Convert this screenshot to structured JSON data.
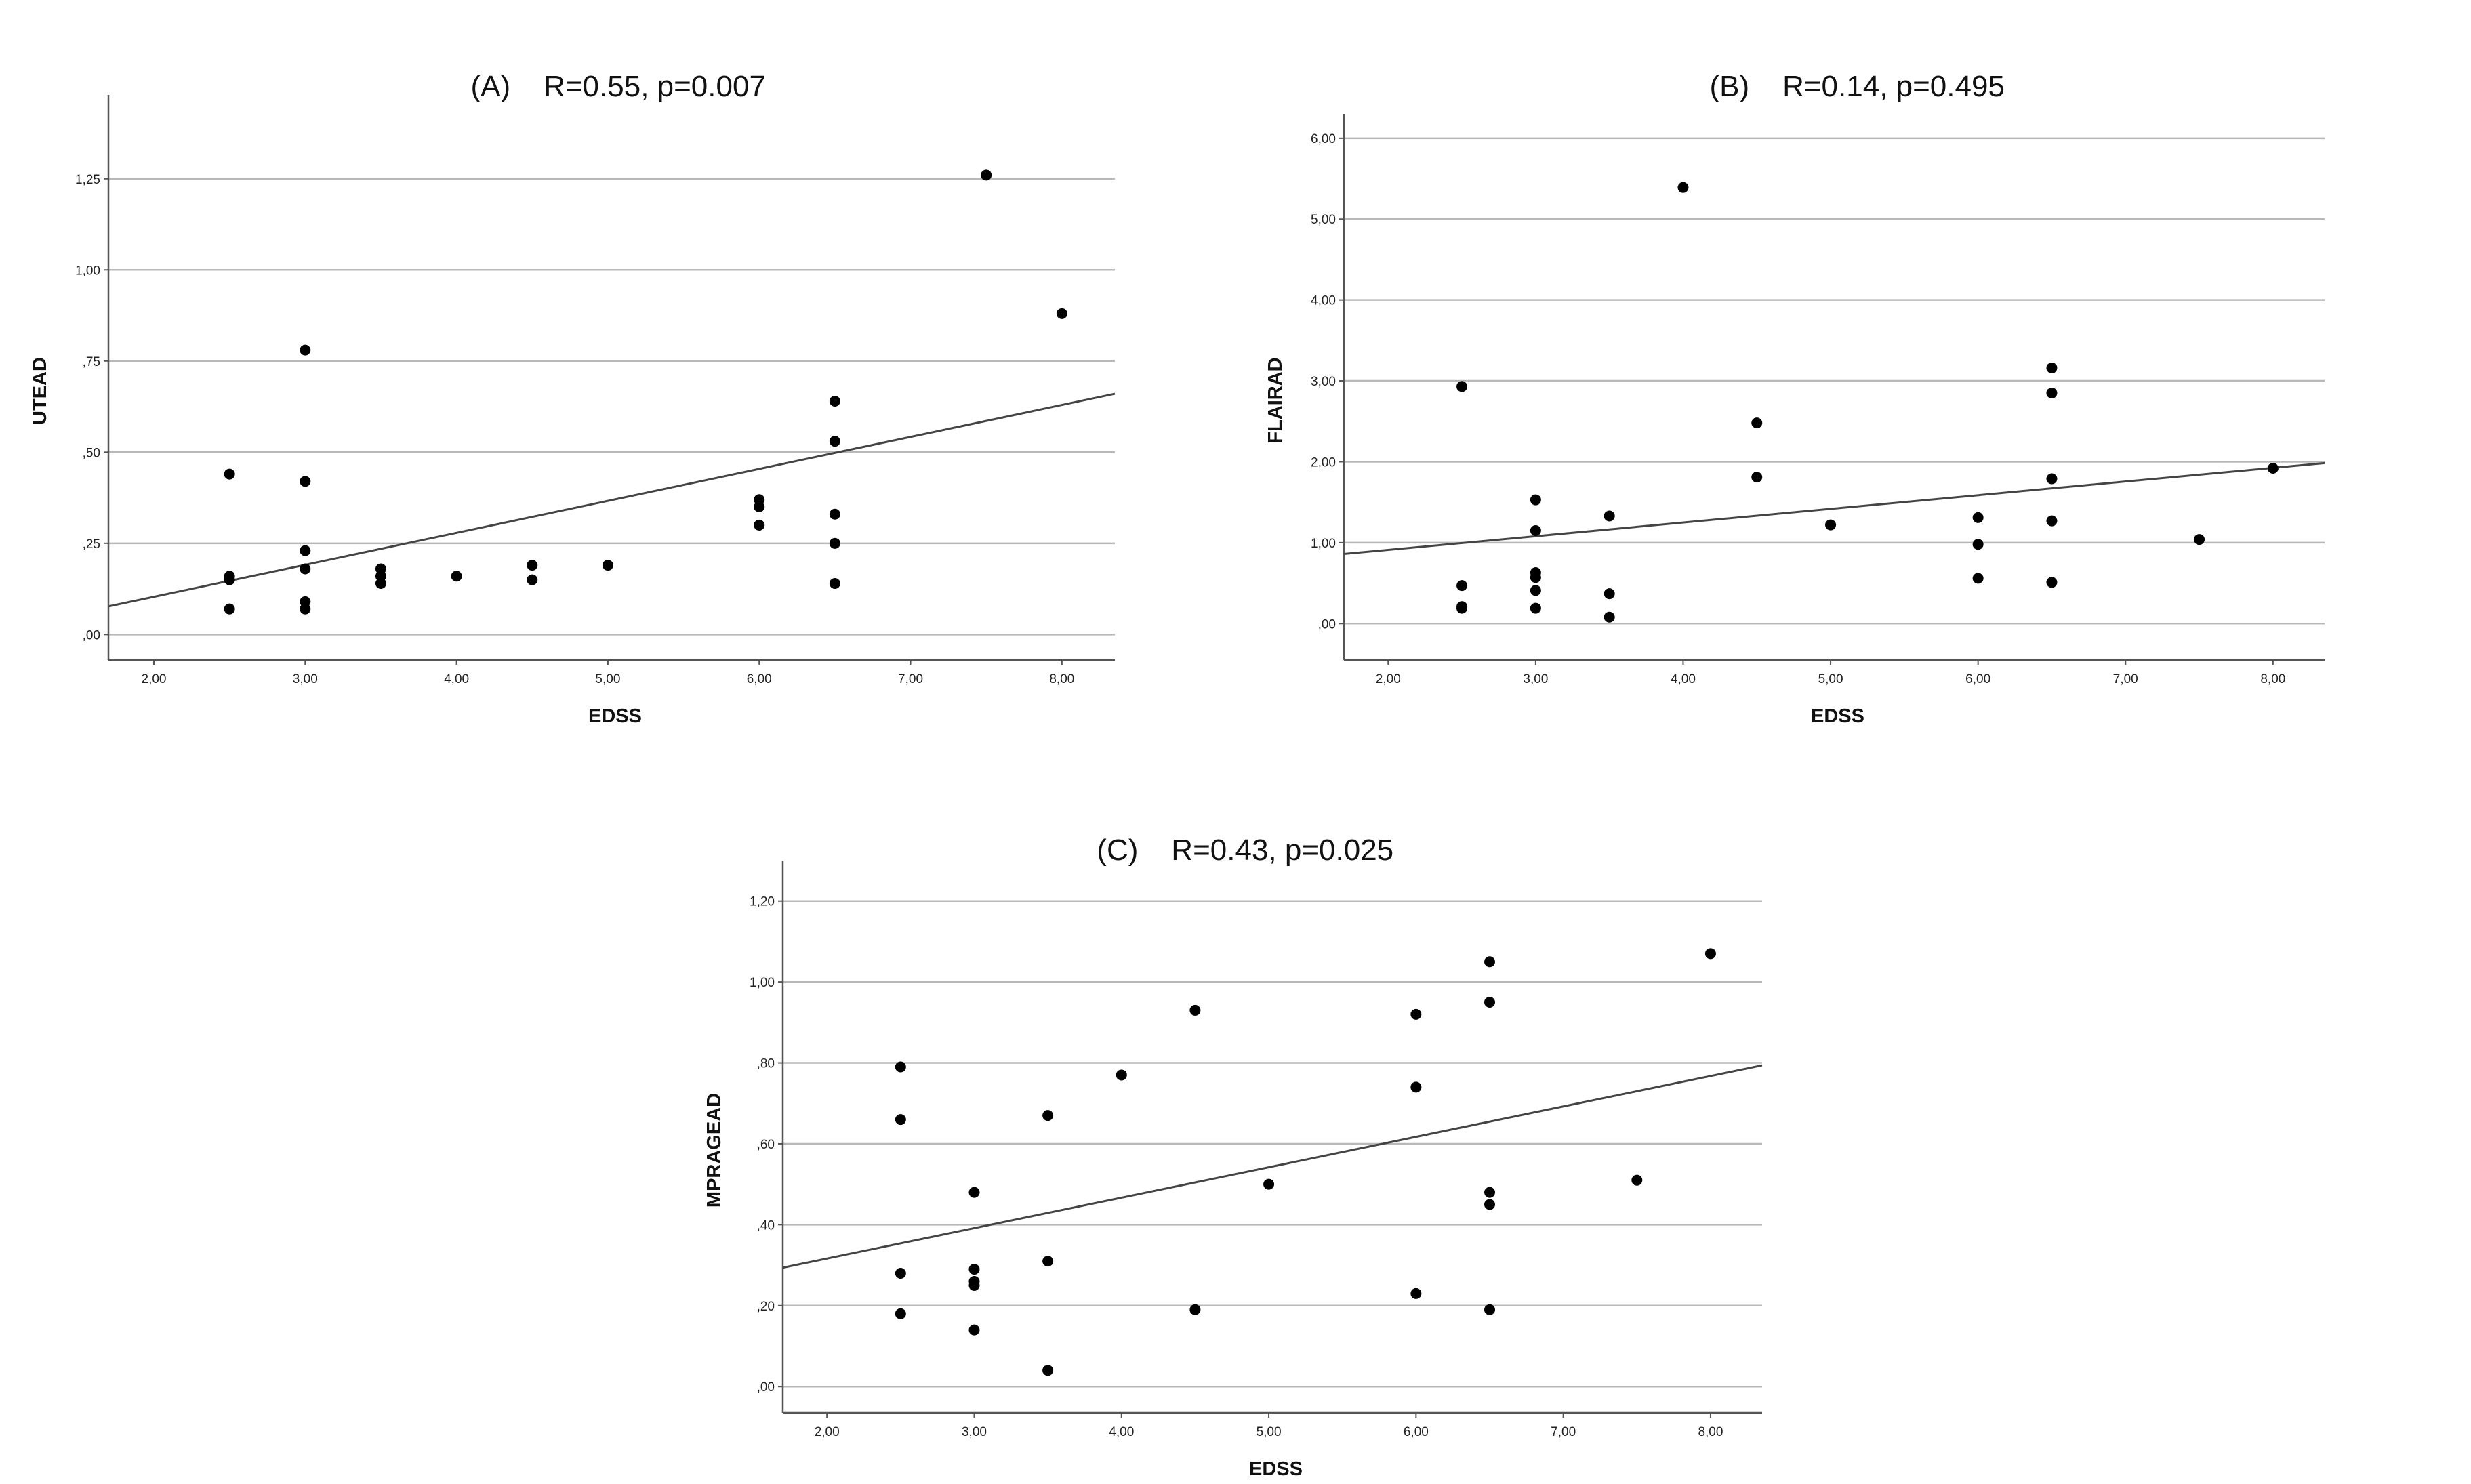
{
  "colors": {
    "point": "#000000",
    "gridline": "#b8b8b8",
    "axis": "#555555",
    "fit_line": "#444444",
    "background": "#ffffff"
  },
  "chart_data": [
    {
      "type": "scatter",
      "panel": "(A)",
      "title": "R=0.55, p=0.007",
      "xlabel": "EDSS",
      "ylabel": "UTEAD",
      "xlim": [
        1.7,
        8.35
      ],
      "ylim": [
        -0.07,
        1.48
      ],
      "xticks": [
        2,
        3,
        4,
        5,
        6,
        7,
        8
      ],
      "xtick_labels": [
        "2,00",
        "3,00",
        "4,00",
        "5,00",
        "6,00",
        "7,00",
        "8,00"
      ],
      "yticks": [
        0,
        0.25,
        0.5,
        0.75,
        1.0,
        1.25
      ],
      "ytick_labels": [
        ",00",
        ",25",
        ",50",
        ",75",
        "1,00",
        "1,25"
      ],
      "grid": "horizontal",
      "fit_line": {
        "slope": 0.0877,
        "intercept": -0.072
      },
      "points": [
        [
          2.5,
          0.44
        ],
        [
          2.5,
          0.16
        ],
        [
          2.5,
          0.15
        ],
        [
          2.5,
          0.07
        ],
        [
          3.0,
          0.78
        ],
        [
          3.0,
          0.42
        ],
        [
          3.0,
          0.23
        ],
        [
          3.0,
          0.18
        ],
        [
          3.0,
          0.09
        ],
        [
          3.0,
          0.07
        ],
        [
          3.5,
          0.18
        ],
        [
          3.5,
          0.16
        ],
        [
          3.5,
          0.14
        ],
        [
          4.0,
          0.16
        ],
        [
          4.5,
          0.19
        ],
        [
          4.5,
          0.15
        ],
        [
          5.0,
          0.19
        ],
        [
          6.0,
          0.37
        ],
        [
          6.0,
          0.35
        ],
        [
          6.0,
          0.3
        ],
        [
          6.5,
          0.64
        ],
        [
          6.5,
          0.53
        ],
        [
          6.5,
          0.33
        ],
        [
          6.5,
          0.25
        ],
        [
          6.5,
          0.14
        ],
        [
          7.5,
          1.26
        ],
        [
          8.0,
          0.88
        ]
      ]
    },
    {
      "type": "scatter",
      "panel": "(B)",
      "title": "R=0.14, p=0.495",
      "xlabel": "EDSS",
      "ylabel": "FLAIRAD",
      "xlim": [
        1.7,
        8.35
      ],
      "ylim": [
        -0.45,
        6.3
      ],
      "xticks": [
        2,
        3,
        4,
        5,
        6,
        7,
        8
      ],
      "xtick_labels": [
        "2,00",
        "3,00",
        "4,00",
        "5,00",
        "6,00",
        "7,00",
        "8,00"
      ],
      "yticks": [
        0,
        1,
        2,
        3,
        4,
        5,
        6
      ],
      "ytick_labels": [
        ",00",
        "1,00",
        "2,00",
        "3,00",
        "4,00",
        "5,00",
        "6,00"
      ],
      "grid": "horizontal",
      "fit_line": {
        "slope": 0.169,
        "intercept": 0.573
      },
      "points": [
        [
          2.5,
          2.93
        ],
        [
          2.5,
          0.47
        ],
        [
          2.5,
          0.21
        ],
        [
          2.5,
          0.19
        ],
        [
          3.0,
          1.53
        ],
        [
          3.0,
          1.15
        ],
        [
          3.0,
          0.63
        ],
        [
          3.0,
          0.57
        ],
        [
          3.0,
          0.41
        ],
        [
          3.0,
          0.19
        ],
        [
          3.5,
          1.33
        ],
        [
          3.5,
          0.37
        ],
        [
          3.5,
          0.08
        ],
        [
          4.0,
          5.39
        ],
        [
          4.5,
          2.48
        ],
        [
          4.5,
          1.81
        ],
        [
          5.0,
          1.22
        ],
        [
          6.0,
          1.31
        ],
        [
          6.0,
          0.98
        ],
        [
          6.0,
          0.56
        ],
        [
          6.5,
          3.16
        ],
        [
          6.5,
          2.85
        ],
        [
          6.5,
          1.79
        ],
        [
          6.5,
          1.27
        ],
        [
          6.5,
          0.51
        ],
        [
          7.5,
          1.04
        ],
        [
          8.0,
          1.92
        ]
      ]
    },
    {
      "type": "scatter",
      "panel": "(C)",
      "title": "R=0.43, p=0.025",
      "xlabel": "EDSS",
      "ylabel": "MPRAGEAD",
      "xlim": [
        1.7,
        8.35
      ],
      "ylim": [
        -0.065,
        1.3
      ],
      "xticks": [
        2,
        3,
        4,
        5,
        6,
        7,
        8
      ],
      "xtick_labels": [
        "2,00",
        "3,00",
        "4,00",
        "5,00",
        "6,00",
        "7,00",
        "8,00"
      ],
      "yticks": [
        0,
        0.2,
        0.4,
        0.6,
        0.8,
        1.0,
        1.2
      ],
      "ytick_labels": [
        ",00",
        ",20",
        ",40",
        ",60",
        ",80",
        "1,00",
        "1,20"
      ],
      "grid": "horizontal",
      "fit_line": {
        "slope": 0.0752,
        "intercept": 0.166
      },
      "points": [
        [
          2.5,
          0.79
        ],
        [
          2.5,
          0.66
        ],
        [
          2.5,
          0.28
        ],
        [
          2.5,
          0.18
        ],
        [
          3.0,
          0.48
        ],
        [
          3.0,
          0.29
        ],
        [
          3.0,
          0.26
        ],
        [
          3.0,
          0.25
        ],
        [
          3.0,
          0.14
        ],
        [
          3.5,
          0.67
        ],
        [
          3.5,
          0.31
        ],
        [
          3.5,
          0.04
        ],
        [
          4.0,
          0.77
        ],
        [
          4.5,
          0.93
        ],
        [
          4.5,
          0.19
        ],
        [
          5.0,
          0.5
        ],
        [
          6.0,
          0.92
        ],
        [
          6.0,
          0.74
        ],
        [
          6.0,
          0.23
        ],
        [
          6.5,
          1.05
        ],
        [
          6.5,
          0.95
        ],
        [
          6.5,
          0.48
        ],
        [
          6.5,
          0.45
        ],
        [
          6.5,
          0.19
        ],
        [
          7.5,
          0.51
        ],
        [
          8.0,
          1.07
        ]
      ]
    }
  ]
}
